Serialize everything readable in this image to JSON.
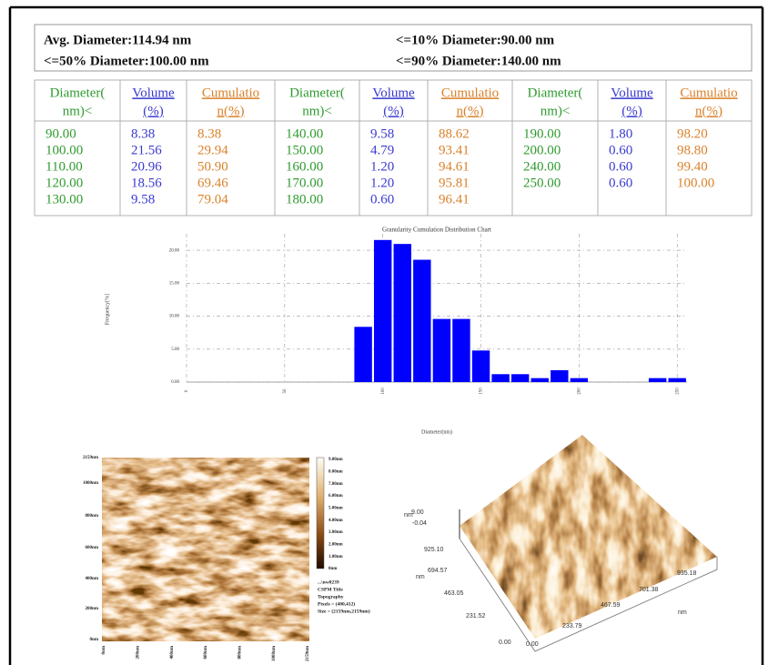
{
  "summary": [
    "Avg. Diameter:114.94 nm",
    "<=10% Diameter:90.00 nm",
    "<=50% Diameter:100.00 nm",
    "<=90% Diameter:140.00 nm"
  ],
  "table": {
    "header": [
      [
        "Diameter(",
        "nm)<"
      ],
      [
        "Volume",
        "(%)"
      ],
      [
        "Cumulatio",
        "n(%)"
      ],
      [
        "Diameter(",
        "nm)<"
      ],
      [
        "Volume",
        "(%)"
      ],
      [
        "Cumulatio",
        "n(%)"
      ],
      [
        "Diameter(",
        "nm)<"
      ],
      [
        "Volume",
        "(%)"
      ],
      [
        "Cumulatio",
        "n(%)"
      ]
    ],
    "columns": [
      [
        "90.00",
        "100.00",
        "110.00",
        "120.00",
        "130.00"
      ],
      [
        "8.38",
        "21.56",
        "20.96",
        "18.56",
        "9.58"
      ],
      [
        "8.38",
        "29.94",
        "50.90",
        "69.46",
        "79.04"
      ],
      [
        "140.00",
        "150.00",
        "160.00",
        "170.00",
        "180.00"
      ],
      [
        "9.58",
        "4.79",
        "1.20",
        "1.20",
        "0.60"
      ],
      [
        "88.62",
        "93.41",
        "94.61",
        "95.81",
        "96.41"
      ],
      [
        "190.00",
        "200.00",
        "240.00",
        "250.00"
      ],
      [
        "1.80",
        "0.60",
        "0.60",
        "0.60"
      ],
      [
        "98.20",
        "98.80",
        "99.40",
        "100.00"
      ]
    ]
  },
  "chart_data": {
    "type": "bar",
    "title": "Granularity Cumulation Distribution  Chart",
    "x_label": "Diameter(nm)",
    "y_label": "Frequency[%]",
    "x": [
      90,
      100,
      110,
      120,
      130,
      140,
      150,
      160,
      170,
      180,
      190,
      200,
      240,
      250
    ],
    "values": [
      8.38,
      21.56,
      20.96,
      18.56,
      9.58,
      9.58,
      4.79,
      1.2,
      1.2,
      0.6,
      1.8,
      0.6,
      0.6,
      0.6
    ],
    "color": "#0000ff",
    "xlim": [
      0,
      255
    ],
    "ylim": [
      0,
      22.5
    ],
    "xticks": [
      0,
      50,
      100,
      150,
      200,
      250
    ],
    "yticks": [
      {
        "value": 0,
        "label": "0.00"
      },
      {
        "value": 5,
        "label": "5.00"
      },
      {
        "value": 10,
        "label": "10.00"
      },
      {
        "value": 15,
        "label": "15.00"
      },
      {
        "value": 20,
        "label": "20.00"
      }
    ],
    "grid": true
  },
  "afm_2d": {
    "y_labels": [
      "2159nm",
      "1000nm",
      "800nm",
      "600nm",
      "400nm",
      "200nm",
      "0nm"
    ],
    "x_labels": [
      "0nm",
      "200nm",
      "400nm",
      "600nm",
      "800nm",
      "1000nm",
      "2159nm"
    ],
    "colorbar_labels": [
      "9.00nm",
      "8.00nm",
      "7.00nm",
      "6.00nm",
      "5.00nm",
      "4.00nm",
      "3.00nm",
      "2.00nm",
      "1.00nm",
      "0nm"
    ],
    "info": [
      "...\\nw0239",
      "CSPM Title",
      "Topography",
      "Pixels = (400,412)",
      "Size = (2159nm,2159nm)"
    ]
  },
  "afm_3d": {
    "labels": [
      "nm",
      "9.00",
      "-0.04",
      "925.10",
      "694.57",
      "nm",
      "463.05",
      "231.52",
      "0.00",
      "0.00",
      "233.79",
      "467.59",
      "701.38",
      "935.18",
      "nm"
    ]
  }
}
